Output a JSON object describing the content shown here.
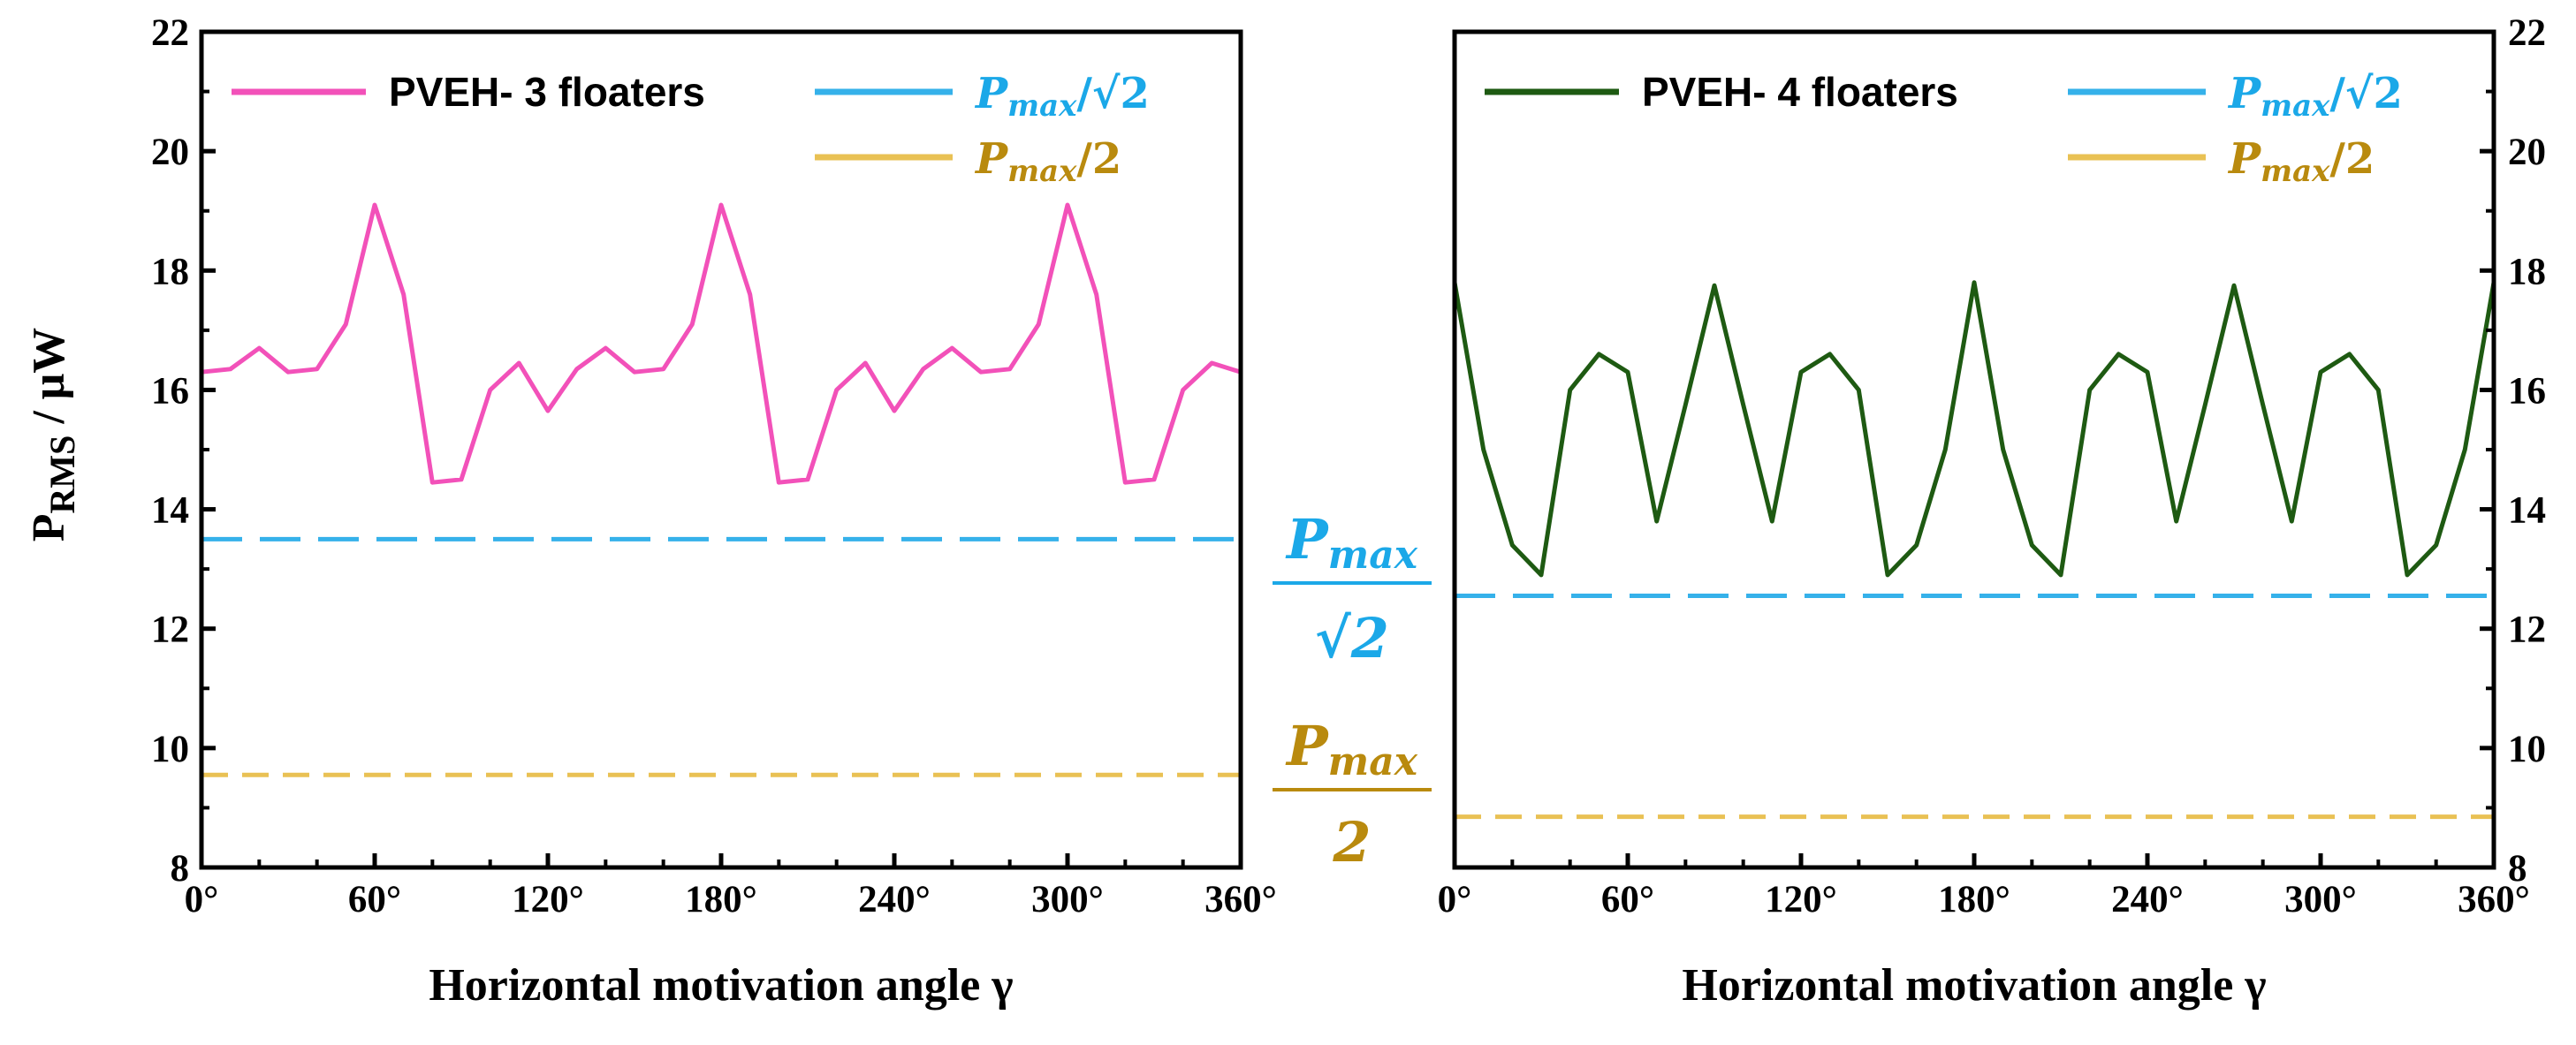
{
  "colors": {
    "pveh3": "#f251b9",
    "pveh4": "#1e5a12",
    "sqrt2": "#35b1ea",
    "half": "#e9c154",
    "sqrt2_text": "#1ba8e8",
    "half_text": "#b98a0e"
  },
  "ylabel": {
    "main": "P",
    "sub": "RMS",
    "rest": " / μW"
  },
  "side_labels": {
    "sqrt2": {
      "num": "P",
      "sub": "max",
      "den": "√2"
    },
    "half": {
      "num": "P",
      "sub": "max",
      "den": "2"
    }
  },
  "chart_data": [
    {
      "type": "line",
      "title": "",
      "xlabel": "Horizontal motivation angle γ",
      "ylabel": "P_RMS / μW",
      "xlim": [
        0,
        360
      ],
      "ylim": [
        8,
        22
      ],
      "xticks": [
        0,
        60,
        120,
        180,
        240,
        300,
        360
      ],
      "xtick_labels": [
        "0°",
        "60°",
        "120°",
        "180°",
        "240°",
        "300°",
        "360°"
      ],
      "yticks": [
        8,
        10,
        12,
        14,
        16,
        18,
        20,
        22
      ],
      "ytick_labels": [
        "8",
        "10",
        "12",
        "14",
        "16",
        "18",
        "20",
        "22"
      ],
      "y_axis_side": "left",
      "legend_position": "top",
      "series": [
        {
          "name": "PVEH- 3 floaters",
          "style": "solid",
          "x": [
            0,
            10,
            20,
            30,
            40,
            50,
            60,
            70,
            80,
            90,
            100,
            110,
            120,
            130,
            140,
            150,
            160,
            170,
            180,
            190,
            200,
            210,
            220,
            230,
            240,
            250,
            260,
            270,
            280,
            290,
            300,
            310,
            320,
            330,
            340,
            350,
            360
          ],
          "values": [
            16.3,
            16.35,
            16.7,
            16.3,
            16.35,
            17.1,
            19.1,
            17.6,
            14.45,
            14.5,
            16.0,
            16.45,
            15.65,
            16.35,
            16.7,
            16.3,
            16.35,
            17.1,
            19.1,
            17.6,
            14.45,
            14.5,
            16.0,
            16.45,
            15.65,
            16.35,
            16.7,
            16.3,
            16.35,
            17.1,
            19.1,
            17.6,
            14.45,
            14.5,
            16.0,
            16.45,
            16.3
          ]
        },
        {
          "name": "Pmax/√2",
          "legend_math": {
            "main": "P",
            "sub": "max",
            "tail": "/√2"
          },
          "style": "dashed",
          "x": [
            0,
            360
          ],
          "values": [
            13.5,
            13.5
          ]
        },
        {
          "name": "Pmax/2",
          "legend_math": {
            "main": "P",
            "sub": "max",
            "tail": "/2"
          },
          "style": "dashed",
          "x": [
            0,
            360
          ],
          "values": [
            9.55,
            9.55
          ]
        }
      ]
    },
    {
      "type": "line",
      "title": "",
      "xlabel": "Horizontal motivation angle γ",
      "ylabel": "",
      "xlim": [
        0,
        360
      ],
      "ylim": [
        8,
        22
      ],
      "xticks": [
        0,
        60,
        120,
        180,
        240,
        300,
        360
      ],
      "xtick_labels": [
        "0°",
        "60°",
        "120°",
        "180°",
        "240°",
        "300°",
        "360°"
      ],
      "yticks": [
        8,
        10,
        12,
        14,
        16,
        18,
        20,
        22
      ],
      "ytick_labels": [
        "8",
        "10",
        "12",
        "14",
        "16",
        "18",
        "20",
        "22"
      ],
      "y_axis_side": "right",
      "legend_position": "top",
      "series": [
        {
          "name": "PVEH- 4 floaters",
          "style": "solid",
          "x": [
            0,
            10,
            20,
            30,
            40,
            50,
            60,
            70,
            80,
            90,
            100,
            110,
            120,
            130,
            140,
            150,
            160,
            170,
            180,
            190,
            200,
            210,
            220,
            230,
            240,
            250,
            260,
            270,
            280,
            290,
            300,
            310,
            320,
            330,
            340,
            350,
            360
          ],
          "values": [
            17.8,
            15.0,
            13.4,
            12.9,
            16.0,
            16.6,
            16.3,
            13.8,
            15.75,
            17.75,
            15.75,
            13.8,
            16.3,
            16.6,
            16.0,
            12.9,
            13.4,
            15.0,
            17.8,
            15.0,
            13.4,
            12.9,
            16.0,
            16.6,
            16.3,
            13.8,
            15.75,
            17.75,
            15.75,
            13.8,
            16.3,
            16.6,
            16.0,
            12.9,
            13.4,
            15.0,
            17.8
          ]
        },
        {
          "name": "Pmax/√2",
          "legend_math": {
            "main": "P",
            "sub": "max",
            "tail": "/√2"
          },
          "style": "dashed",
          "x": [
            0,
            360
          ],
          "values": [
            12.55,
            12.55
          ]
        },
        {
          "name": "Pmax/2",
          "legend_math": {
            "main": "P",
            "sub": "max",
            "tail": "/2"
          },
          "style": "dashed",
          "x": [
            0,
            360
          ],
          "values": [
            8.85,
            8.85
          ]
        }
      ]
    }
  ]
}
